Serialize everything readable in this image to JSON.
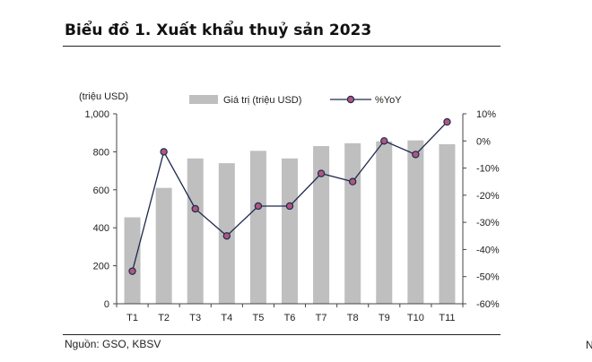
{
  "title": "Biểu đồ 1. Xuất khẩu thuỷ sản 2023",
  "source": "Nguồn: GSO, KBSV",
  "edge_glyph": "N",
  "colors": {
    "bar": "#bfbfbf",
    "line": "#1f2a4d",
    "marker": "#b0577e",
    "axis": "#444444"
  },
  "chart_data": {
    "type": "bar",
    "categories": [
      "T1",
      "T2",
      "T3",
      "T4",
      "T5",
      "T6",
      "T7",
      "T8",
      "T9",
      "T10",
      "T11"
    ],
    "y_left_unit": "(triệu USD)",
    "y_left_range": [
      0,
      1000
    ],
    "y_left_ticks": [
      0,
      200,
      400,
      600,
      800,
      1000
    ],
    "y_left_tick_labels": [
      "0",
      "200",
      "400",
      "600",
      "800",
      "1,000"
    ],
    "y_right_range": [
      -60,
      10
    ],
    "y_right_ticks": [
      -60,
      -50,
      -40,
      -30,
      -20,
      -10,
      0,
      10
    ],
    "y_right_tick_labels": [
      "-60%",
      "-50%",
      "-40%",
      "-30%",
      "-20%",
      "-10%",
      "0%",
      "10%"
    ],
    "legend_placement": "top",
    "series": [
      {
        "name": "Giá trị (triệu USD)",
        "type": "bar",
        "axis": "left",
        "values": [
          455,
          610,
          765,
          740,
          805,
          765,
          830,
          845,
          855,
          860,
          840
        ]
      },
      {
        "name": "%YoY",
        "type": "line",
        "axis": "right",
        "values": [
          -48,
          -4,
          -25,
          -35,
          -24,
          -24,
          -12,
          -15,
          0,
          -5,
          7
        ]
      }
    ]
  }
}
